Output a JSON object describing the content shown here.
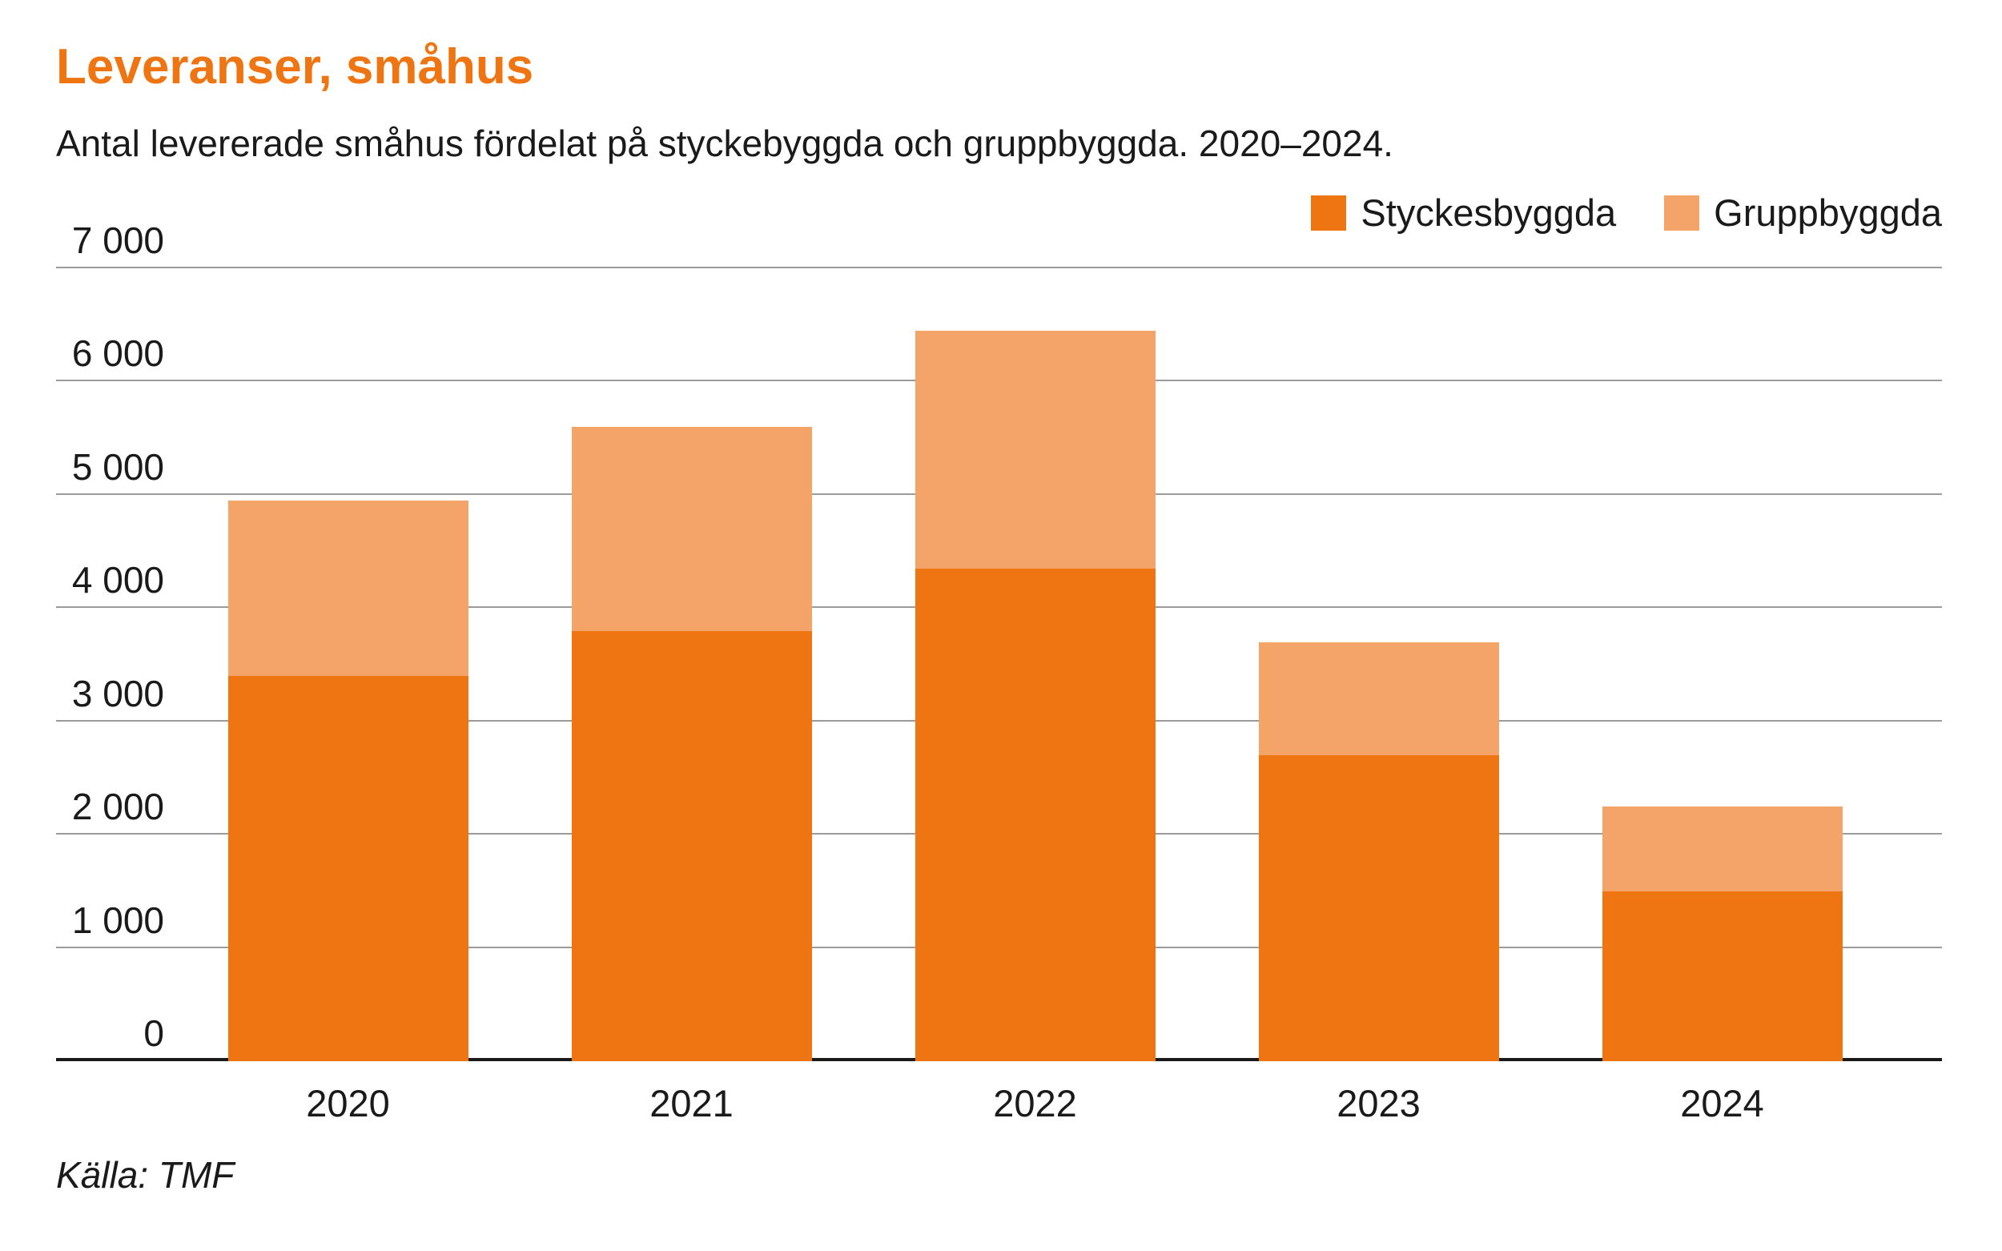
{
  "title": "Leveranser, småhus",
  "subtitle": "Antal levererade småhus fördelat på styckebyggda och gruppbyggda. 2020–2024.",
  "source": "Källa: TMF",
  "colors": {
    "title": "#ee7512",
    "styckesbyggda": "#ee7512",
    "gruppbyggda": "#f4a469",
    "grid": "#9b9b9b",
    "axis": "#1a1a1a",
    "text": "#1a1a1a"
  },
  "legend": [
    {
      "label": "Styckesbyggda",
      "color": "#ee7512"
    },
    {
      "label": "Gruppbyggda",
      "color": "#f4a469"
    }
  ],
  "chart_data": {
    "type": "bar",
    "stacked": true,
    "title": "Leveranser, småhus",
    "subtitle": "Antal levererade småhus fördelat på styckebyggda och gruppbyggda. 2020–2024.",
    "categories": [
      "2020",
      "2021",
      "2022",
      "2023",
      "2024"
    ],
    "series": [
      {
        "name": "Styckesbyggda",
        "values": [
          3400,
          3800,
          4350,
          2700,
          1500
        ]
      },
      {
        "name": "Gruppbyggda",
        "values": [
          1550,
          1800,
          2100,
          1000,
          750
        ]
      }
    ],
    "totals": [
      4950,
      5600,
      6450,
      3700,
      2250
    ],
    "ylim": [
      0,
      7000
    ],
    "ytick_interval": 1000,
    "ytick_labels": [
      "0",
      "1 000",
      "2 000",
      "3 000",
      "4 000",
      "5 000",
      "6 000",
      "7 000"
    ],
    "grid": true,
    "legend_position": "top-right",
    "source": "Källa: TMF"
  }
}
